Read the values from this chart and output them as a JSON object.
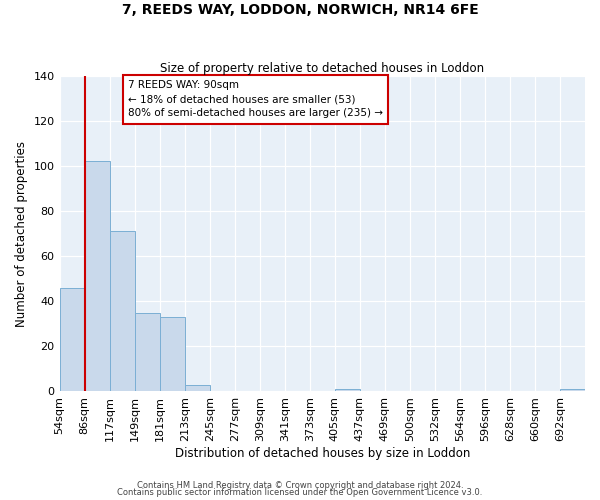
{
  "title": "7, REEDS WAY, LODDON, NORWICH, NR14 6FE",
  "subtitle": "Size of property relative to detached houses in Loddon",
  "xlabel": "Distribution of detached houses by size in Loddon",
  "ylabel": "Number of detached properties",
  "bar_color": "#c9d9eb",
  "bar_edge_color": "#7bafd4",
  "background_color": "#e8f0f8",
  "grid_color": "#ffffff",
  "bin_labels": [
    "54sqm",
    "86sqm",
    "117sqm",
    "149sqm",
    "181sqm",
    "213sqm",
    "245sqm",
    "277sqm",
    "309sqm",
    "341sqm",
    "373sqm",
    "405sqm",
    "437sqm",
    "469sqm",
    "500sqm",
    "532sqm",
    "564sqm",
    "596sqm",
    "628sqm",
    "660sqm",
    "692sqm"
  ],
  "bar_values": [
    46,
    102,
    71,
    35,
    33,
    3,
    0,
    0,
    0,
    0,
    0,
    1,
    0,
    0,
    0,
    0,
    0,
    0,
    0,
    0,
    1
  ],
  "ylim": [
    0,
    140
  ],
  "yticks": [
    0,
    20,
    40,
    60,
    80,
    100,
    120,
    140
  ],
  "vline_x": 1,
  "vline_color": "#cc0000",
  "annotation_text_line1": "7 REEDS WAY: 90sqm",
  "annotation_text_line2": "← 18% of detached houses are smaller (53)",
  "annotation_text_line3": "80% of semi-detached houses are larger (235) →",
  "footer_line1": "Contains HM Land Registry data © Crown copyright and database right 2024.",
  "footer_line2": "Contains public sector information licensed under the Open Government Licence v3.0."
}
